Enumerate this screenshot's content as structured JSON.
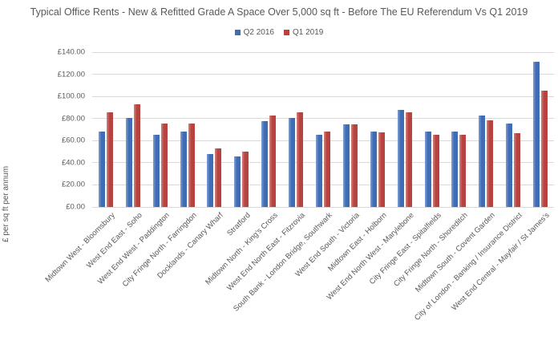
{
  "chart_data": {
    "type": "bar",
    "title": "Typical Office Rents - New & Refitted Grade A Space Over 5,000 sq ft - Before The EU Referendum Vs Q1 2019",
    "ylabel": "£ per sq ft per annum",
    "xlabel": "",
    "ylim": [
      0,
      140
    ],
    "grid": true,
    "legend_position": "top-center",
    "y_ticks": [
      "£0.00",
      "£20.00",
      "£40.00",
      "£60.00",
      "£80.00",
      "£100.00",
      "£120.00",
      "£140.00"
    ],
    "categories": [
      "Midtown West - Bloomsbury",
      "West End East - Soho",
      "West End West - Paddington",
      "City Fringe North - Farringdon",
      "Docklands - Canary Wharf",
      "Stratford",
      "Midtown North - King's Cross",
      "West End North East - Fitzrovia",
      "South Bank - London Bridge, Southwark",
      "West End South - Victoria",
      "Midtown East - Holborn",
      "West End North West - Marylebone",
      "City Fringe East - Spitalfields",
      "City Fringe North - Shoreditch",
      "Midtown South - Covent Garden",
      "City of London - Banking / Insurance District",
      "West End Central - Mayfair / St James's"
    ],
    "series": [
      {
        "name": "Q2 2016",
        "color": "#3E6CB5",
        "values": [
          68.5,
          80.5,
          65.5,
          68.0,
          48.0,
          45.5,
          77.5,
          80.5,
          65.5,
          75.0,
          68.5,
          88.0,
          68.0,
          68.0,
          83.0,
          75.5,
          131.0
        ]
      },
      {
        "name": "Q1 2019",
        "color": "#B8423E",
        "values": [
          85.5,
          92.5,
          75.5,
          75.5,
          53.0,
          50.0,
          82.5,
          85.5,
          68.5,
          75.0,
          67.5,
          85.5,
          65.5,
          65.5,
          78.0,
          66.5,
          105.5
        ]
      }
    ]
  },
  "colors": {
    "text": "#595959",
    "gridline": "#D9D9D9",
    "background": "#FFFFFF"
  }
}
